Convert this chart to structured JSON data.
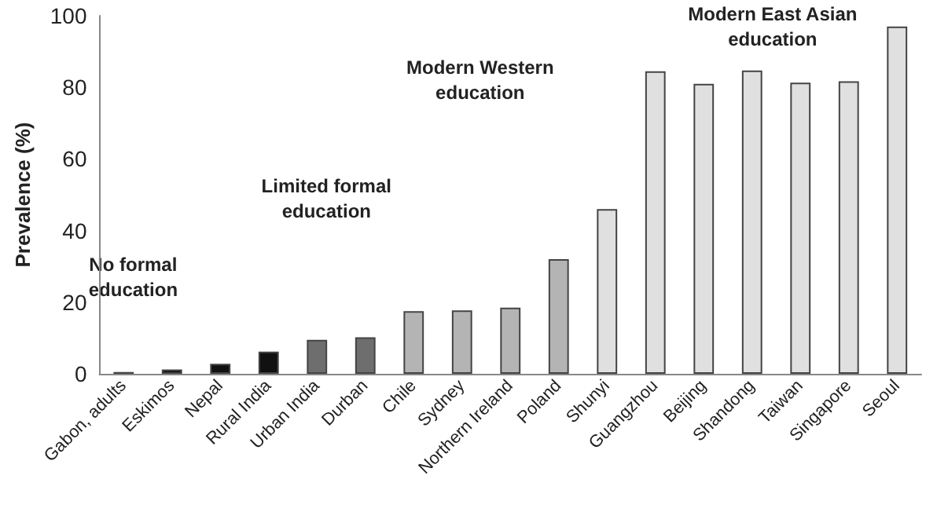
{
  "chart_data": {
    "type": "bar",
    "ylabel": "Prevalence (%)",
    "categories": [
      "Gabon, adults",
      "Eskimos",
      "Nepal",
      "Rural India",
      "Urban India",
      "Durban",
      "Chile",
      "Sydney",
      "Northern Ireland",
      "Poland",
      "Shunyi",
      "Guangzhou",
      "Beijing",
      "Shandong",
      "Taiwan",
      "Singapore",
      "Seoul"
    ],
    "values": [
      0.5,
      1.2,
      2.8,
      6.2,
      9.5,
      10.2,
      17.5,
      17.7,
      18.5,
      32,
      46,
      84.5,
      81,
      84.7,
      81.3,
      81.7,
      97
    ],
    "colors": [
      "#111111",
      "#111111",
      "#111111",
      "#111111",
      "#6e6e6e",
      "#6e6e6e",
      "#b4b4b4",
      "#b4b4b4",
      "#b4b4b4",
      "#b4b4b4",
      "#e0e0e0",
      "#e0e0e0",
      "#e0e0e0",
      "#e0e0e0",
      "#e0e0e0",
      "#e0e0e0",
      "#e0e0e0"
    ],
    "ylim": [
      0,
      100
    ],
    "yticks": [
      0,
      20,
      40,
      60,
      80,
      100
    ],
    "grid": false,
    "annotations": [
      "No formal\neducation",
      "Limited formal\neducation",
      "Modern Western\neducation",
      "Modern East Asian\neducation"
    ]
  }
}
